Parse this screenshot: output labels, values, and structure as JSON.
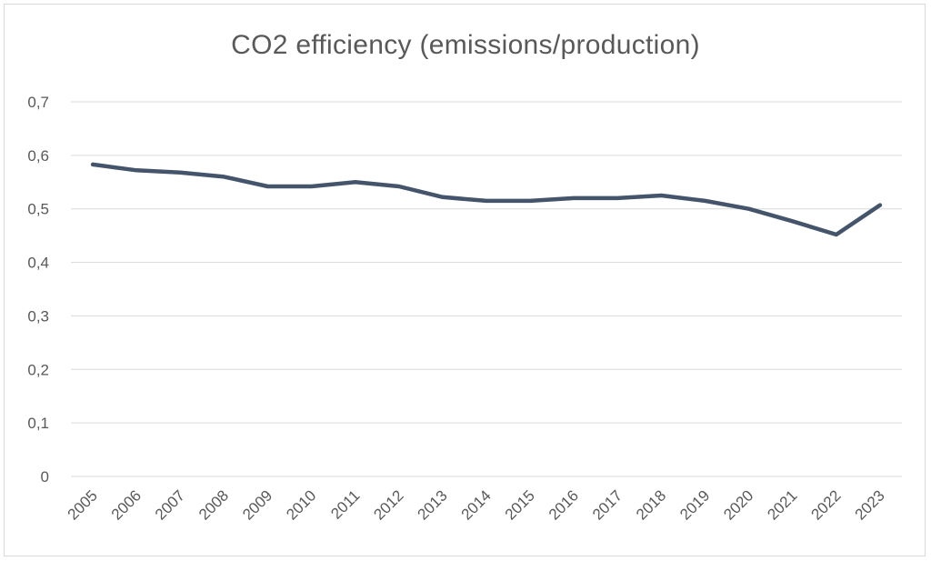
{
  "chart_data": {
    "type": "line",
    "title": "CO2 efficiency (emissions/production)",
    "xlabel": "",
    "ylabel": "",
    "categories": [
      "2005",
      "2006",
      "2007",
      "2008",
      "2009",
      "2010",
      "2011",
      "2012",
      "2013",
      "2014",
      "2015",
      "2016",
      "2017",
      "2018",
      "2019",
      "2020",
      "2021",
      "2022",
      "2023"
    ],
    "series": [
      {
        "values": [
          0.583,
          0.572,
          0.568,
          0.56,
          0.542,
          0.542,
          0.55,
          0.542,
          0.522,
          0.515,
          0.515,
          0.52,
          0.52,
          0.525,
          0.515,
          0.5,
          0.477,
          0.452,
          0.507
        ],
        "color": "#44546a"
      }
    ],
    "ylim": [
      0,
      0.7
    ],
    "yticks": [
      "0",
      "0,1",
      "0,2",
      "0,3",
      "0,4",
      "0,5",
      "0,6",
      "0,7"
    ],
    "grid": true,
    "legend": "none"
  }
}
